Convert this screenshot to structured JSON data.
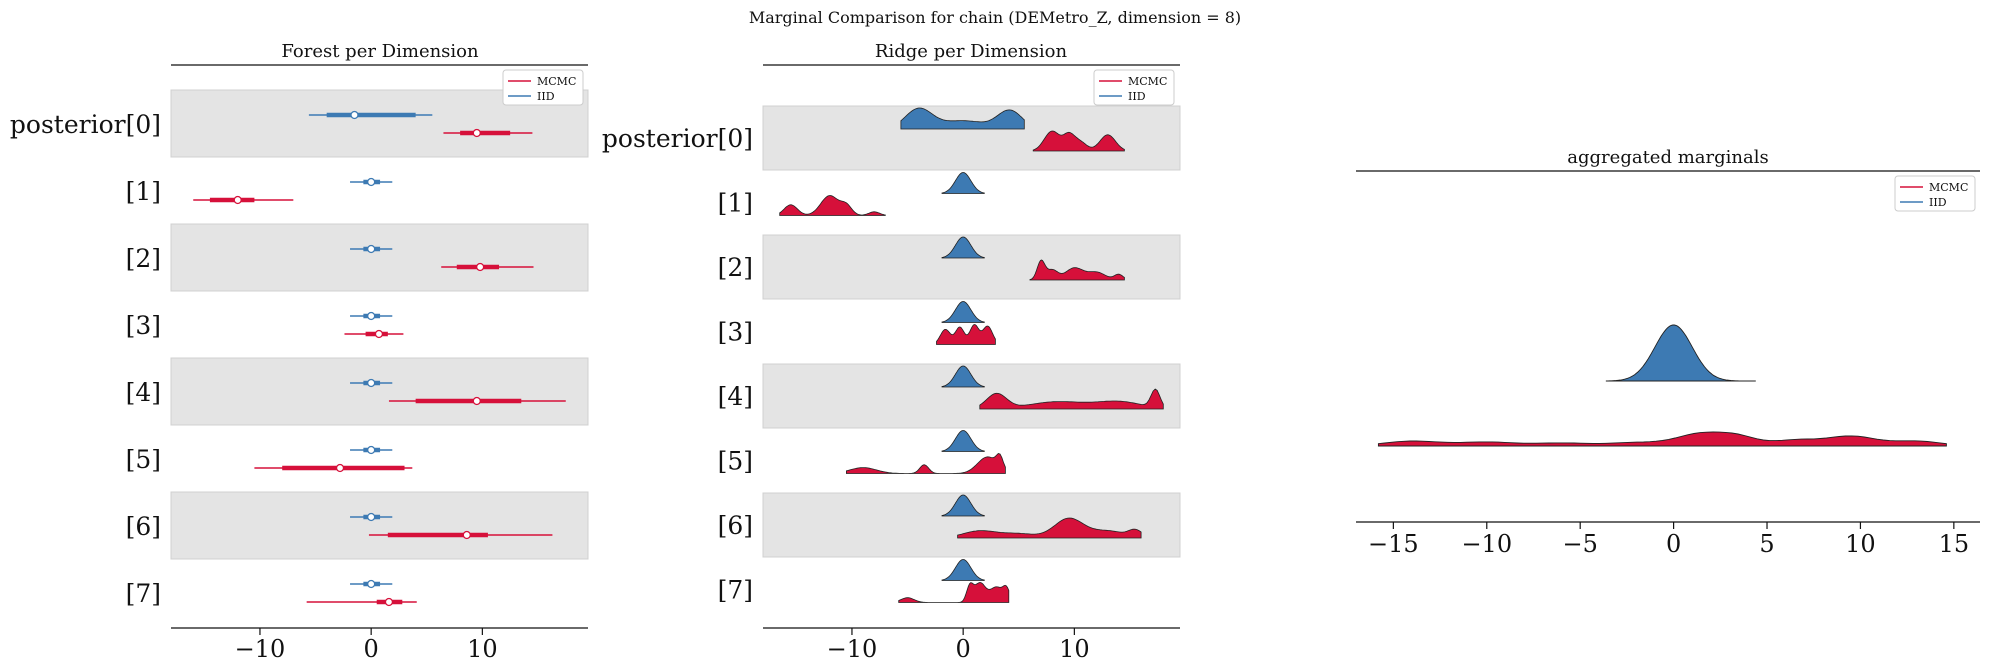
{
  "figure": {
    "suptitle": "Marginal Comparison for chain (DEMetro_Z, dimension = 8)"
  },
  "colors": {
    "mcmc": "#d6103a",
    "iid": "#3d7ab3",
    "band": "#e4e4e4",
    "outline": "#222222"
  },
  "chart_data": [
    {
      "type": "forest",
      "title": "Forest per Dimension",
      "xlim": [
        -18,
        19.5
      ],
      "ticks": [
        -10,
        0,
        10
      ],
      "tick_labels": [
        "−10",
        "0",
        "10"
      ],
      "row_labels": [
        "posterior[0]",
        "[1]",
        "[2]",
        "[3]",
        "[4]",
        "[5]",
        "[6]",
        "[7]"
      ],
      "legend": {
        "placement": "top-right",
        "entries": [
          "MCMC",
          "IID"
        ]
      },
      "series": [
        {
          "name": "IID",
          "color_key": "iid",
          "rows": [
            {
              "lo": -5.6,
              "q1": -4.0,
              "mid": -1.5,
              "q3": 4.0,
              "hi": 5.5
            },
            {
              "lo": -1.9,
              "q1": -0.7,
              "mid": 0.0,
              "q3": 0.8,
              "hi": 1.9
            },
            {
              "lo": -1.9,
              "q1": -0.7,
              "mid": 0.0,
              "q3": 0.8,
              "hi": 1.9
            },
            {
              "lo": -1.9,
              "q1": -0.7,
              "mid": 0.0,
              "q3": 0.8,
              "hi": 1.9
            },
            {
              "lo": -1.9,
              "q1": -0.7,
              "mid": 0.0,
              "q3": 0.8,
              "hi": 1.9
            },
            {
              "lo": -1.9,
              "q1": -0.7,
              "mid": 0.0,
              "q3": 0.8,
              "hi": 1.9
            },
            {
              "lo": -1.9,
              "q1": -0.7,
              "mid": 0.0,
              "q3": 0.8,
              "hi": 1.9
            },
            {
              "lo": -1.9,
              "q1": -0.7,
              "mid": 0.0,
              "q3": 0.8,
              "hi": 1.9
            }
          ]
        },
        {
          "name": "MCMC",
          "color_key": "mcmc",
          "rows": [
            {
              "lo": 6.5,
              "q1": 8.0,
              "mid": 9.5,
              "q3": 12.5,
              "hi": 14.5
            },
            {
              "lo": -16.0,
              "q1": -14.5,
              "mid": -12.0,
              "q3": -10.5,
              "hi": -7.0
            },
            {
              "lo": 6.3,
              "q1": 7.7,
              "mid": 9.8,
              "q3": 11.5,
              "hi": 14.6
            },
            {
              "lo": -2.4,
              "q1": -0.5,
              "mid": 0.7,
              "q3": 1.5,
              "hi": 2.9
            },
            {
              "lo": 1.6,
              "q1": 4.0,
              "mid": 9.5,
              "q3": 13.5,
              "hi": 17.5
            },
            {
              "lo": -10.5,
              "q1": -8.0,
              "mid": -2.8,
              "q3": 3.0,
              "hi": 3.7
            },
            {
              "lo": -0.2,
              "q1": 1.5,
              "mid": 8.6,
              "q3": 10.5,
              "hi": 16.3
            },
            {
              "lo": -5.8,
              "q1": 0.5,
              "mid": 1.6,
              "q3": 2.8,
              "hi": 4.1
            }
          ]
        }
      ]
    },
    {
      "type": "ridge",
      "title": "Ridge per Dimension",
      "xlim": [
        -18,
        19.5
      ],
      "ticks": [
        -10,
        0,
        10
      ],
      "tick_labels": [
        "−10",
        "0",
        "10"
      ],
      "row_labels": [
        "posterior[0]",
        "[1]",
        "[2]",
        "[3]",
        "[4]",
        "[5]",
        "[6]",
        "[7]"
      ],
      "legend": {
        "placement": "top-right",
        "entries": [
          "MCMC",
          "IID"
        ]
      },
      "series": [
        {
          "name": "IID",
          "color_key": "iid",
          "rows": [
            {
              "range": [
                -5.6,
                5.5
              ],
              "peaks": [
                [
                  -4.0,
                  1.2,
                  0.6
                ],
                [
                  0.0,
                  2.0,
                  0.25
                ],
                [
                  4.2,
                  1.1,
                  0.55
                ]
              ]
            },
            {
              "range": [
                -1.9,
                1.9
              ],
              "peaks": [
                [
                  0.0,
                  0.7,
                  1.0
                ]
              ]
            },
            {
              "range": [
                -1.9,
                1.9
              ],
              "peaks": [
                [
                  0.0,
                  0.7,
                  1.0
                ]
              ]
            },
            {
              "range": [
                -1.9,
                1.9
              ],
              "peaks": [
                [
                  0.0,
                  0.7,
                  1.0
                ]
              ]
            },
            {
              "range": [
                -1.9,
                1.9
              ],
              "peaks": [
                [
                  0.0,
                  0.7,
                  1.0
                ]
              ]
            },
            {
              "range": [
                -1.9,
                1.9
              ],
              "peaks": [
                [
                  0.0,
                  0.7,
                  1.0
                ]
              ]
            },
            {
              "range": [
                -1.9,
                1.9
              ],
              "peaks": [
                [
                  0.0,
                  0.7,
                  1.0
                ]
              ]
            },
            {
              "range": [
                -1.9,
                1.9
              ],
              "peaks": [
                [
                  0.0,
                  0.7,
                  1.0
                ]
              ]
            }
          ]
        },
        {
          "name": "MCMC",
          "color_key": "mcmc",
          "rows": [
            {
              "range": [
                6.3,
                14.5
              ],
              "peaks": [
                [
                  8.0,
                  0.7,
                  0.55
                ],
                [
                  9.5,
                  0.5,
                  0.4
                ],
                [
                  10.5,
                  0.6,
                  0.25
                ],
                [
                  13.0,
                  0.7,
                  0.45
                ]
              ]
            },
            {
              "range": [
                -16.5,
                -7.0
              ],
              "peaks": [
                [
                  -15.5,
                  0.6,
                  0.35
                ],
                [
                  -12.0,
                  0.8,
                  0.65
                ],
                [
                  -10.5,
                  0.5,
                  0.3
                ],
                [
                  -8.0,
                  0.5,
                  0.12
                ]
              ]
            },
            {
              "range": [
                6.0,
                14.5
              ],
              "peaks": [
                [
                  7.0,
                  0.35,
                  0.85
                ],
                [
                  8.0,
                  0.5,
                  0.45
                ],
                [
                  10.0,
                  0.8,
                  0.55
                ],
                [
                  12.0,
                  0.8,
                  0.35
                ],
                [
                  14.0,
                  0.4,
                  0.25
                ]
              ]
            },
            {
              "range": [
                -2.4,
                2.9
              ],
              "peaks": [
                [
                  -1.6,
                  0.45,
                  0.7
                ],
                [
                  -0.3,
                  0.4,
                  0.8
                ],
                [
                  1.0,
                  0.4,
                  0.9
                ],
                [
                  2.2,
                  0.45,
                  0.85
                ]
              ]
            },
            {
              "range": [
                1.5,
                18.0
              ],
              "peaks": [
                [
                  3.0,
                  0.9,
                  0.25
                ],
                [
                  8.5,
                  2.5,
                  0.12
                ],
                [
                  14.0,
                  2.0,
                  0.12
                ],
                [
                  17.3,
                  0.4,
                  0.3
                ]
              ]
            },
            {
              "range": [
                -10.5,
                3.8
              ],
              "peaks": [
                [
                  -9.0,
                  1.2,
                  0.3
                ],
                [
                  -3.5,
                  0.4,
                  0.45
                ],
                [
                  2.2,
                  0.9,
                  0.85
                ],
                [
                  3.3,
                  0.3,
                  0.6
                ]
              ]
            },
            {
              "range": [
                -0.5,
                16.0
              ],
              "peaks": [
                [
                  1.5,
                  1.5,
                  0.2
                ],
                [
                  5.0,
                  1.5,
                  0.12
                ],
                [
                  9.5,
                  1.3,
                  0.55
                ],
                [
                  13.0,
                  1.5,
                  0.2
                ],
                [
                  15.5,
                  0.6,
                  0.2
                ]
              ]
            },
            {
              "range": [
                -5.8,
                4.1
              ],
              "peaks": [
                [
                  -5.0,
                  0.6,
                  0.25
                ],
                [
                  0.6,
                  0.3,
                  0.8
                ],
                [
                  1.5,
                  0.5,
                  1.0
                ],
                [
                  3.0,
                  0.6,
                  0.8
                ],
                [
                  3.9,
                  0.3,
                  0.6
                ]
              ]
            }
          ]
        }
      ]
    },
    {
      "type": "area",
      "title": "aggregated marginals",
      "xlim": [
        -17.0,
        16.4
      ],
      "ticks": [
        -15,
        -10,
        -5,
        0,
        5,
        10,
        15
      ],
      "tick_labels": [
        "−15",
        "−10",
        "−5",
        "0",
        "5",
        "10",
        "15"
      ],
      "legend": {
        "placement": "top-right",
        "entries": [
          "MCMC",
          "IID"
        ]
      },
      "series": [
        {
          "name": "IID",
          "color_key": "iid",
          "range": [
            -3.6,
            4.4
          ],
          "peaks": [
            [
              0.0,
              1.0,
              1.0
            ]
          ]
        },
        {
          "name": "MCMC",
          "color_key": "mcmc",
          "range": [
            -15.8,
            14.6
          ],
          "peaks": [
            [
              -14.0,
              1.5,
              0.1
            ],
            [
              -10.0,
              1.5,
              0.08
            ],
            [
              -6.0,
              1.5,
              0.06
            ],
            [
              -2.0,
              1.5,
              0.07
            ],
            [
              1.5,
              1.3,
              0.25
            ],
            [
              3.5,
              1.0,
              0.16
            ],
            [
              6.5,
              1.2,
              0.12
            ],
            [
              9.5,
              1.3,
              0.2
            ],
            [
              13.0,
              1.3,
              0.1
            ]
          ]
        }
      ]
    }
  ]
}
